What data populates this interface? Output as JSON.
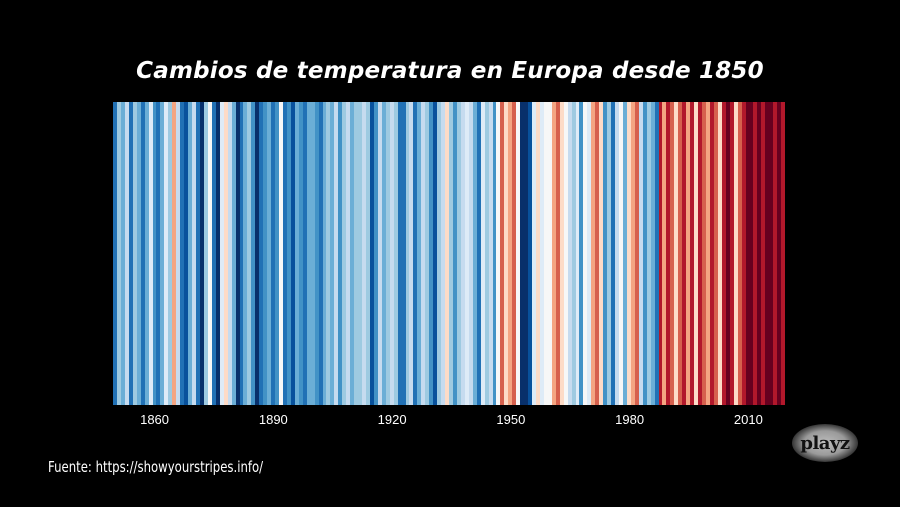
{
  "title": "Cambios de temperatura en Europa desde 1850",
  "source": "Fuente: https://showyourstripes.info/",
  "logo": "playz",
  "chart_data": {
    "type": "heatmap",
    "subtype": "warming-stripes",
    "title": "Cambios de temperatura en Europa desde 1850",
    "xlabel": "",
    "ylabel": "",
    "x_range": [
      1850,
      2019
    ],
    "x_ticks": [
      1860,
      1890,
      1920,
      1950,
      1980,
      2010
    ],
    "colorscale": "RdBu (blue = cooler, red = warmer)",
    "grid": false,
    "legend": "none",
    "note": "Stripe colors are an approximate visual transcription from the screenshot, not the underlying temperature data.",
    "stripes_start_year": 1850,
    "stripe_colors": [
      "#2171b5",
      "#9ecae1",
      "#6baed6",
      "#c6dbef",
      "#2171b5",
      "#9ecae1",
      "#6baed6",
      "#2171b5",
      "#6baed6",
      "#deebf7",
      "#4292c6",
      "#2171b5",
      "#6baed6",
      "#deebf7",
      "#9ecae1",
      "#f4a582",
      "#c6dbef",
      "#2171b5",
      "#08519c",
      "#6baed6",
      "#c6dbef",
      "#2171b5",
      "#08306b",
      "#9ecae1",
      "#f7f7f7",
      "#2171b5",
      "#08306b",
      "#deebf7",
      "#fddbc7",
      "#c6dbef",
      "#6baed6",
      "#08306b",
      "#2171b5",
      "#6baed6",
      "#9ecae1",
      "#4292c6",
      "#08306b",
      "#2171b5",
      "#4292c6",
      "#6baed6",
      "#2171b5",
      "#4292c6",
      "#f7f7f7",
      "#2171b5",
      "#4292c6",
      "#08519c",
      "#6baed6",
      "#4292c6",
      "#2171b5",
      "#6baed6",
      "#6baed6",
      "#4292c6",
      "#2171b5",
      "#6baed6",
      "#9ecae1",
      "#6baed6",
      "#c6dbef",
      "#4292c6",
      "#9ecae1",
      "#c6dbef",
      "#6baed6",
      "#9ecae1",
      "#9ecae1",
      "#c6dbef",
      "#9ecae1",
      "#08519c",
      "#4292c6",
      "#c6dbef",
      "#6baed6",
      "#9ecae1",
      "#c6dbef",
      "#9ecae1",
      "#2171b5",
      "#2171b5",
      "#9ecae1",
      "#c6dbef",
      "#2171b5",
      "#6baed6",
      "#c6dbef",
      "#9ecae1",
      "#4292c6",
      "#08519c",
      "#9ecae1",
      "#c6dbef",
      "#fddbc7",
      "#9ecae1",
      "#4292c6",
      "#9ecae1",
      "#c6dbef",
      "#deebf7",
      "#c6dbef",
      "#6baed6",
      "#2171b5",
      "#deebf7",
      "#9ecae1",
      "#c6dbef",
      "#4292c6",
      "#f7f7f7",
      "#d6604d",
      "#fddbc7",
      "#f4a582",
      "#d6604d",
      "#f7f7f7",
      "#08306b",
      "#08306b",
      "#08519c",
      "#deebf7",
      "#fddbc7",
      "#deebf7",
      "#f7f7f7",
      "#f7f7f7",
      "#f4a582",
      "#d6604d",
      "#fddbc7",
      "#f7f7f7",
      "#c6dbef",
      "#9ecae1",
      "#deebf7",
      "#4292c6",
      "#f7f7f7",
      "#deebf7",
      "#f4a582",
      "#d6604d",
      "#fddbc7",
      "#4292c6",
      "#9ecae1",
      "#2171b5",
      "#c6dbef",
      "#f7f7f7",
      "#6baed6",
      "#fddbc7",
      "#f4a582",
      "#d6604d",
      "#c6dbef",
      "#4292c6",
      "#9ecae1",
      "#6baed6",
      "#2171b5",
      "#b2182b",
      "#f4a582",
      "#b2182b",
      "#d6604d",
      "#fddbc7",
      "#d6604d",
      "#b2182b",
      "#f4a582",
      "#b2182b",
      "#fddbc7",
      "#b2182b",
      "#d6604d",
      "#f4a582",
      "#b2182b",
      "#d6604d",
      "#fddbc7",
      "#b2182b",
      "#67001f",
      "#b2182b",
      "#fddbc7",
      "#d6604d",
      "#b2182b",
      "#67001f",
      "#67001f",
      "#b2182b",
      "#67001f",
      "#b2182b",
      "#67001f",
      "#67001f",
      "#b2182b",
      "#67001f",
      "#b2182b"
    ]
  }
}
